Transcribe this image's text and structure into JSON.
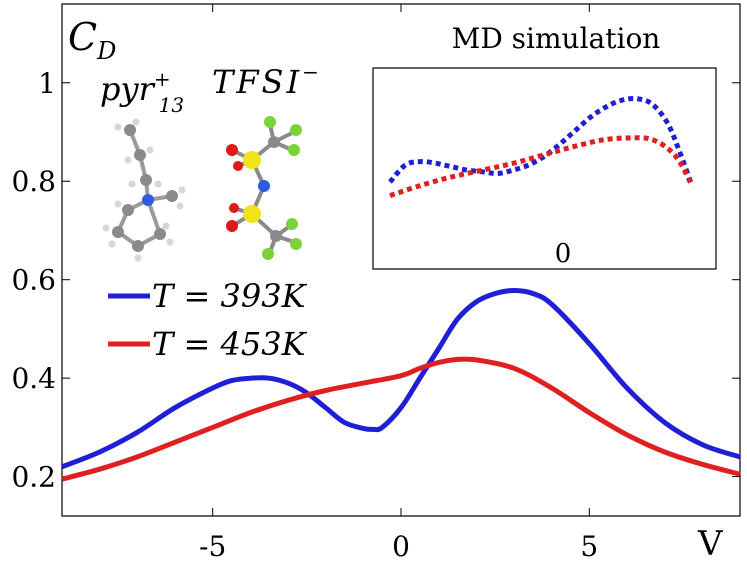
{
  "chart_data": {
    "type": "line",
    "ylabel_main": "C",
    "ylabel_sub": "D",
    "xlabel": "V",
    "xlim": [
      -9,
      9
    ],
    "ylim": [
      0.12,
      1.16
    ],
    "xticks": [
      "-5",
      "0",
      "5"
    ],
    "xtick_values": [
      -5,
      0,
      5
    ],
    "yticks": [
      "0.2",
      "0.4",
      "0.6",
      "0.8",
      "1"
    ],
    "ytick_values": [
      0.2,
      0.4,
      0.6,
      0.8,
      1.0
    ],
    "grid": false,
    "legend_position": "middle-left",
    "series": [
      {
        "name": "T = 393K",
        "color": "#1f1fd6",
        "x": [
          -9,
          -8,
          -7,
          -6,
          -5,
          -4.5,
          -4,
          -3.5,
          -3,
          -2.5,
          -2,
          -1.5,
          -1,
          -0.75,
          -0.5,
          0,
          0.5,
          1,
          1.5,
          2,
          2.5,
          3,
          3.5,
          4,
          5,
          6,
          7,
          8,
          9
        ],
        "y": [
          0.22,
          0.25,
          0.29,
          0.34,
          0.38,
          0.395,
          0.4,
          0.4,
          0.39,
          0.37,
          0.34,
          0.31,
          0.298,
          0.296,
          0.3,
          0.34,
          0.4,
          0.46,
          0.52,
          0.555,
          0.572,
          0.578,
          0.572,
          0.55,
          0.47,
          0.38,
          0.31,
          0.265,
          0.24
        ]
      },
      {
        "name": "T = 453K",
        "color": "#e02020",
        "x": [
          -9,
          -8,
          -7,
          -6,
          -5,
          -4,
          -3,
          -2,
          -1,
          0,
          0.5,
          1,
          1.5,
          2,
          3,
          4,
          5,
          6,
          7,
          8,
          9
        ],
        "y": [
          0.195,
          0.215,
          0.24,
          0.27,
          0.3,
          0.33,
          0.355,
          0.375,
          0.39,
          0.405,
          0.42,
          0.432,
          0.438,
          0.437,
          0.42,
          0.38,
          0.33,
          0.285,
          0.25,
          0.225,
          0.205
        ]
      }
    ],
    "legend": [
      {
        "label": "T = 393K",
        "color": "#1f1fd6"
      },
      {
        "label": "T = 453K",
        "color": "#e02020"
      }
    ],
    "inset": {
      "title": "MD simulation",
      "xtick": "0",
      "style": "dotted",
      "xlim": [
        -5,
        5
      ],
      "ylim": [
        0,
        1
      ],
      "series": [
        {
          "color": "#1f1fd6",
          "x": [
            -5,
            -4.5,
            -4,
            -3.5,
            -3,
            -2.5,
            -2,
            -1.5,
            -1,
            -0.5,
            0,
            0.5,
            1,
            1.5,
            2,
            2.5,
            3,
            3.5,
            4,
            4.4,
            4.8
          ],
          "y": [
            0.4,
            0.5,
            0.52,
            0.51,
            0.49,
            0.47,
            0.46,
            0.45,
            0.47,
            0.5,
            0.55,
            0.62,
            0.7,
            0.78,
            0.84,
            0.88,
            0.89,
            0.86,
            0.75,
            0.58,
            0.38
          ]
        },
        {
          "color": "#e02020",
          "x": [
            -5,
            -4,
            -3,
            -2,
            -1,
            0,
            1,
            2,
            3,
            3.5,
            4,
            4.4,
            4.8
          ],
          "y": [
            0.32,
            0.38,
            0.43,
            0.47,
            0.51,
            0.56,
            0.61,
            0.65,
            0.66,
            0.65,
            0.6,
            0.52,
            0.38
          ]
        }
      ]
    },
    "molecules": {
      "cation_label": "pyr",
      "cation_sub": "13",
      "cation_sup": "+",
      "anion_label": "TFSI",
      "anion_sup": "−"
    }
  }
}
